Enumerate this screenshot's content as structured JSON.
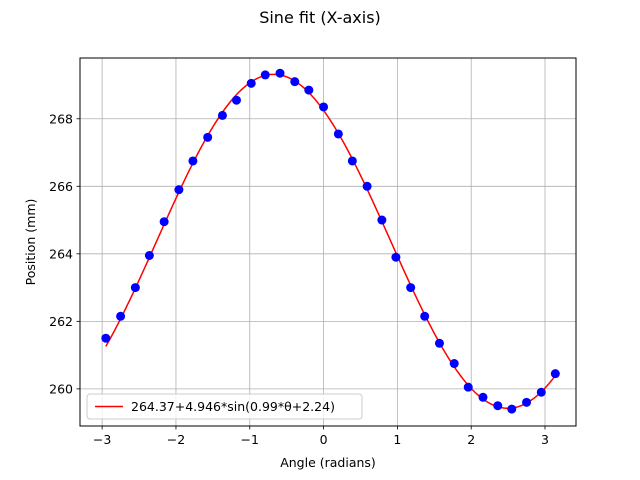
{
  "chart_data": {
    "type": "scatter",
    "title": "Sine fit (X-axis)",
    "xlabel": "Angle (radians)",
    "ylabel": "Position (mm)",
    "xlim": [
      -3.3,
      3.42
    ],
    "ylim": [
      258.9,
      269.8
    ],
    "xticks": [
      -3,
      -2,
      -1,
      0,
      1,
      2,
      3
    ],
    "yticks": [
      260,
      262,
      264,
      266,
      268
    ],
    "grid": true,
    "legend_position": "lower-left",
    "colors": {
      "points": "#0000ff",
      "fit": "#ff0000",
      "grid": "#b0b0b0"
    },
    "series": [
      {
        "kind": "scatter",
        "x": [
          -2.95,
          -2.75,
          -2.55,
          -2.36,
          -2.16,
          -1.96,
          -1.77,
          -1.57,
          -1.37,
          -1.18,
          -0.98,
          -0.79,
          -0.59,
          -0.39,
          -0.2,
          0.0,
          0.2,
          0.39,
          0.59,
          0.79,
          0.98,
          1.18,
          1.37,
          1.57,
          1.77,
          1.96,
          2.16,
          2.36,
          2.55,
          2.75,
          2.95,
          3.14
        ],
        "y": [
          261.5,
          262.15,
          263.0,
          263.95,
          264.95,
          265.9,
          266.75,
          267.45,
          268.1,
          268.55,
          269.05,
          269.3,
          269.35,
          269.1,
          268.85,
          268.35,
          267.55,
          266.75,
          266.0,
          265.0,
          263.9,
          263.0,
          262.15,
          261.35,
          260.75,
          260.05,
          259.75,
          259.5,
          259.4,
          259.6,
          259.9,
          260.45
        ]
      },
      {
        "kind": "line",
        "name": "264.37+4.946*sin(0.99*θ+2.24)",
        "equation": {
          "offset": 264.37,
          "amplitude": 4.946,
          "frequency": 0.99,
          "phase": 2.24
        },
        "x_range": [
          -2.95,
          3.14
        ]
      }
    ]
  }
}
